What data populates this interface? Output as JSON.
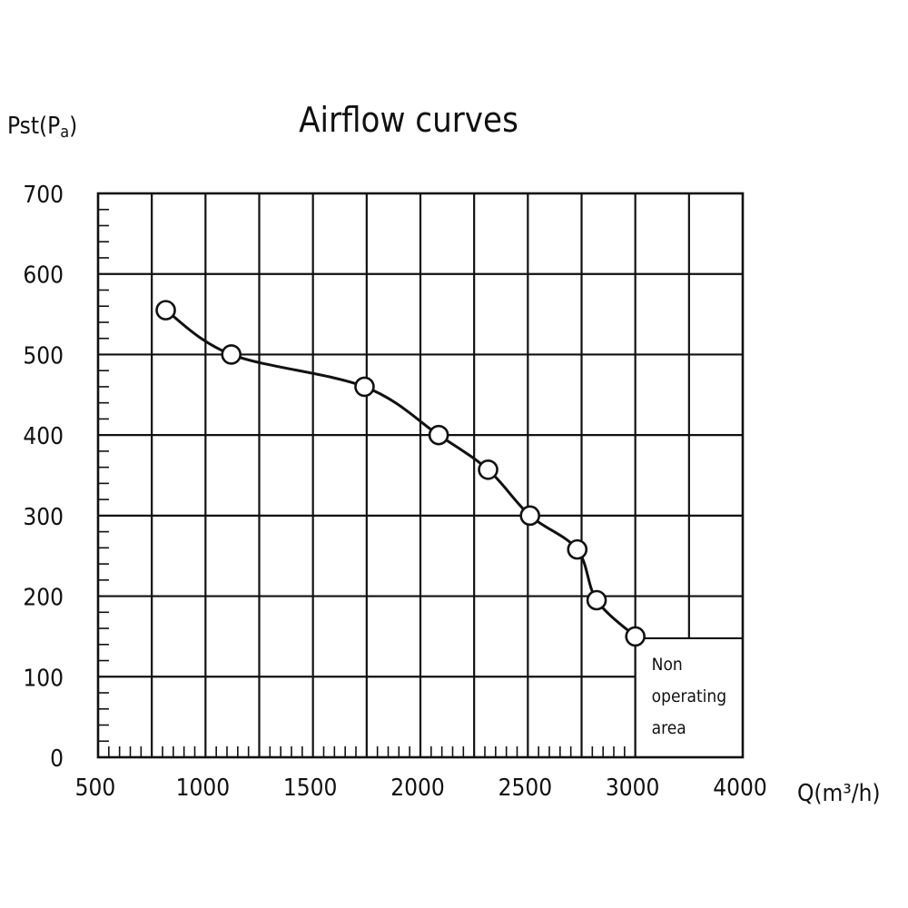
{
  "chart_data": {
    "type": "line",
    "title": "Airflow curves",
    "xlabel": "Q(m³/h)",
    "ylabel_main": "Pst(P",
    "ylabel_sub": "a",
    "ylabel_close": ")",
    "x_ticks": [
      {
        "value": 500,
        "label": "500"
      },
      {
        "value": 1000,
        "label": "1000"
      },
      {
        "value": 1500,
        "label": "1500"
      },
      {
        "value": 2000,
        "label": "2000"
      },
      {
        "value": 2500,
        "label": "2500"
      },
      {
        "value": 3000,
        "label": "3000"
      },
      {
        "value": 4000,
        "label": "4000"
      }
    ],
    "y_ticks": [
      {
        "value": 0,
        "label": "0"
      },
      {
        "value": 100,
        "label": "100"
      },
      {
        "value": 200,
        "label": "200"
      },
      {
        "value": 300,
        "label": "300"
      },
      {
        "value": 400,
        "label": "400"
      },
      {
        "value": 500,
        "label": "500"
      },
      {
        "value": 600,
        "label": "600"
      },
      {
        "value": 700,
        "label": "700"
      }
    ],
    "ylim": [
      0,
      700
    ],
    "grid": true,
    "series": [
      {
        "x": [
          815,
          1120,
          1740,
          2085,
          2315,
          2510,
          2730,
          2820,
          3000
        ],
        "y": [
          555,
          500,
          460,
          400,
          357,
          300,
          258,
          195,
          150
        ]
      }
    ],
    "annotation": {
      "lines": [
        "Non",
        "operating",
        "area"
      ],
      "y": 150
    }
  }
}
